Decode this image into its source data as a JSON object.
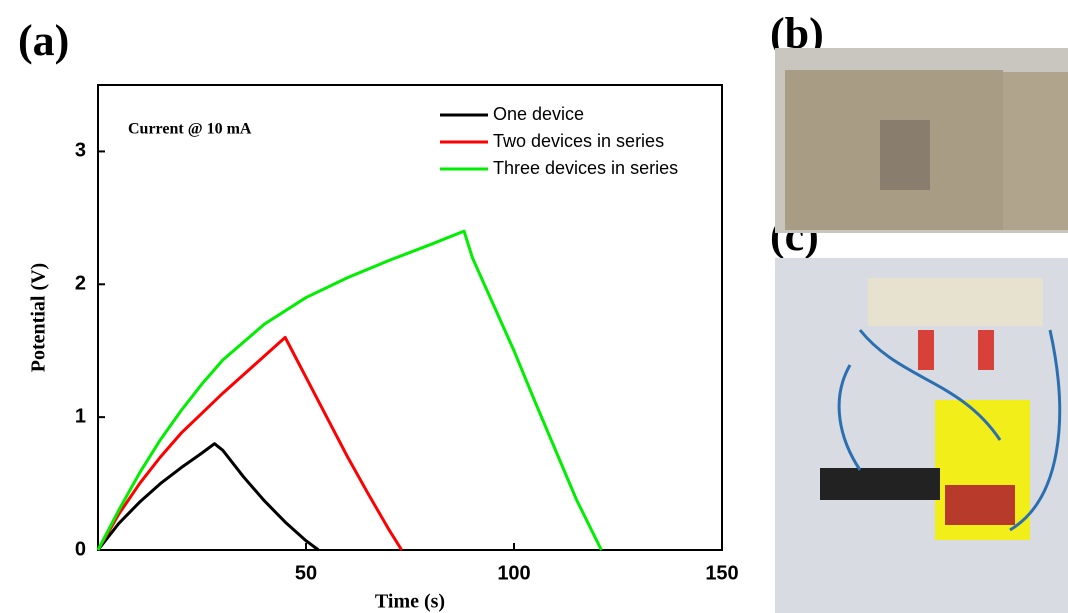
{
  "chart_data": {
    "type": "line",
    "panel_labels": [
      "(a)",
      "(b)",
      "(c)"
    ],
    "annotation": "Current @ 10 mA",
    "x_label": "Time (s)",
    "y_label": "Potential (V)",
    "xlim": [
      0,
      150
    ],
    "xticks": [
      50,
      100,
      150
    ],
    "ylim": [
      0,
      3.5
    ],
    "yticks": [
      0,
      1,
      2,
      3
    ],
    "legend": "upper right",
    "series": [
      {
        "name": "One device",
        "color": "#000000",
        "x": [
          0,
          5,
          10,
          15,
          20,
          25,
          28,
          30,
          35,
          40,
          45,
          50,
          53
        ],
        "values": [
          0,
          0.2,
          0.36,
          0.5,
          0.62,
          0.73,
          0.8,
          0.75,
          0.55,
          0.37,
          0.21,
          0.07,
          0
        ]
      },
      {
        "name": "Two devices in series",
        "color": "#ff0000",
        "x": [
          0,
          5,
          10,
          15,
          20,
          25,
          30,
          35,
          40,
          45,
          47,
          50,
          55,
          60,
          65,
          70,
          73
        ],
        "values": [
          0,
          0.27,
          0.5,
          0.7,
          0.88,
          1.03,
          1.18,
          1.32,
          1.46,
          1.6,
          1.48,
          1.3,
          1.0,
          0.7,
          0.42,
          0.15,
          0
        ]
      },
      {
        "name": "Three devices in series",
        "color": "#00ee00",
        "x": [
          0,
          5,
          10,
          15,
          20,
          25,
          30,
          40,
          50,
          60,
          70,
          80,
          88,
          90,
          95,
          100,
          105,
          110,
          115,
          121
        ],
        "values": [
          0,
          0.3,
          0.58,
          0.83,
          1.05,
          1.25,
          1.43,
          1.7,
          1.9,
          2.05,
          2.18,
          2.3,
          2.4,
          2.2,
          1.85,
          1.5,
          1.12,
          0.75,
          0.38,
          0
        ]
      }
    ]
  }
}
